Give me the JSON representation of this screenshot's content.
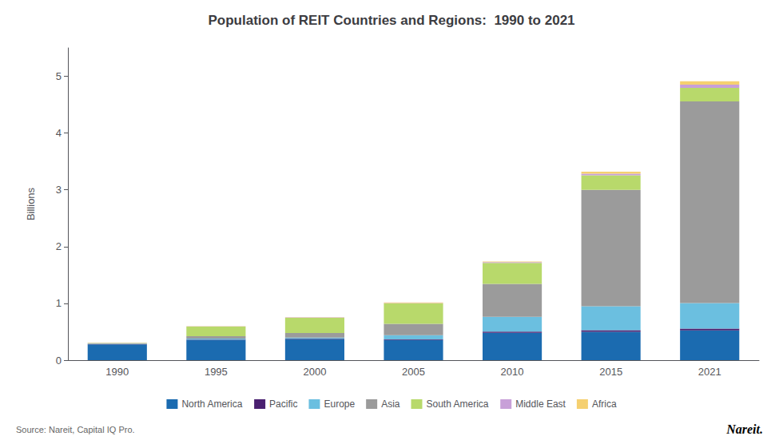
{
  "chart_data": {
    "type": "bar",
    "title": "Population of REIT Countries and Regions:  1990 to 2021",
    "ylabel": "Billions",
    "categories": [
      "1990",
      "1995",
      "2000",
      "2005",
      "2010",
      "2015",
      "2021"
    ],
    "series": [
      {
        "name": "North America",
        "color": "#1b6bb0",
        "values": [
          0.278,
          0.355,
          0.365,
          0.355,
          0.482,
          0.5,
          0.525
        ]
      },
      {
        "name": "Pacific",
        "color": "#4a2070",
        "values": [
          0.004,
          0.008,
          0.01,
          0.012,
          0.022,
          0.028,
          0.032
        ]
      },
      {
        "name": "Europe",
        "color": "#6bbfe0",
        "values": [
          0.008,
          0.018,
          0.022,
          0.072,
          0.26,
          0.42,
          0.45
        ]
      },
      {
        "name": "Asia",
        "color": "#9b9b9b",
        "values": [
          0.006,
          0.04,
          0.08,
          0.2,
          0.58,
          2.05,
          3.55
        ]
      },
      {
        "name": "South America",
        "color": "#b8d96b",
        "values": [
          0.008,
          0.17,
          0.27,
          0.36,
          0.37,
          0.26,
          0.24
        ]
      },
      {
        "name": "Middle East",
        "color": "#c8a0d8",
        "values": [
          0.002,
          0.004,
          0.004,
          0.008,
          0.012,
          0.025,
          0.055
        ]
      },
      {
        "name": "Africa",
        "color": "#f5d070",
        "values": [
          0.002,
          0.004,
          0.004,
          0.008,
          0.012,
          0.035,
          0.06
        ]
      }
    ],
    "stacked": true,
    "ylim": [
      0,
      5.5
    ],
    "yticks": [
      0,
      1,
      2,
      3,
      4,
      5
    ],
    "grid": false,
    "legend": "bottom",
    "annotations": [
      "Source: Nareit, Capital IQ Pro.",
      "Nareit."
    ]
  }
}
